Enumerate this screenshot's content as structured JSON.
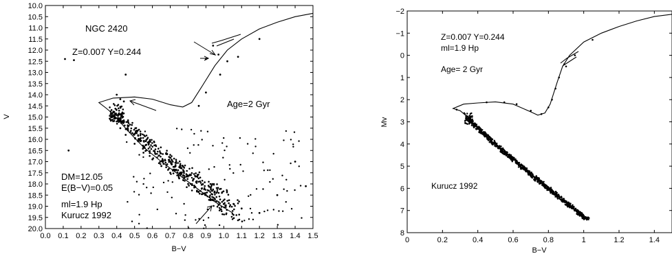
{
  "chart_data": [
    {
      "type": "scatter",
      "xlabel": "B−V",
      "ylabel": "V",
      "xlim": [
        0.0,
        1.5
      ],
      "ylim": [
        20.0,
        10.0
      ],
      "y_inverted": true,
      "xticks": [
        "0.0",
        "0.1",
        "0.2",
        "0.3",
        "0.4",
        "0.5",
        "0.6",
        "0.7",
        "0.8",
        "0.9",
        "1.0",
        "1.1",
        "1.2",
        "1.3",
        "1.4",
        "1.5"
      ],
      "yticks": [
        "10.0",
        "10.5",
        "11.0",
        "11.5",
        "12.0",
        "12.5",
        "13.0",
        "13.5",
        "14.0",
        "14.5",
        "15.0",
        "15.5",
        "16.0",
        "16.5",
        "17.0",
        "17.5",
        "18.0",
        "18.5",
        "19.0",
        "19.5",
        "20.0"
      ],
      "annotations": [
        "NGC 2420",
        "Z=0.007  Y=0.244",
        "Age=2 Gyr",
        "DM=12.05",
        "E(B−V)=0.05",
        "ml=1.9 Hp",
        "Kurucz 1992"
      ],
      "isochrone_points": [
        [
          1.05,
          19.3
        ],
        [
          0.95,
          18.8
        ],
        [
          0.85,
          18.2
        ],
        [
          0.75,
          17.6
        ],
        [
          0.65,
          17.0
        ],
        [
          0.55,
          16.35
        ],
        [
          0.46,
          15.6
        ],
        [
          0.4,
          15.05
        ],
        [
          0.37,
          14.8
        ],
        [
          0.34,
          14.6
        ],
        [
          0.3,
          14.35
        ],
        [
          0.38,
          14.15
        ],
        [
          0.5,
          14.1
        ],
        [
          0.6,
          14.2
        ],
        [
          0.7,
          14.45
        ],
        [
          0.77,
          14.55
        ],
        [
          0.82,
          14.35
        ],
        [
          0.88,
          13.6
        ],
        [
          0.95,
          12.7
        ],
        [
          1.02,
          12.0
        ],
        [
          1.1,
          11.5
        ],
        [
          1.2,
          11.05
        ],
        [
          1.3,
          10.75
        ],
        [
          1.4,
          10.5
        ],
        [
          1.5,
          10.35
        ]
      ],
      "turnoff_points": [
        [
          0.38,
          14.8
        ],
        [
          0.4,
          15.2
        ],
        [
          0.42,
          15.5
        ],
        [
          0.45,
          15.8
        ],
        [
          0.5,
          16.2
        ],
        [
          0.55,
          16.6
        ],
        [
          0.6,
          16.9
        ],
        [
          0.65,
          17.2
        ],
        [
          0.7,
          17.5
        ],
        [
          0.75,
          17.75
        ],
        [
          0.8,
          18.0
        ],
        [
          0.85,
          18.3
        ],
        [
          0.9,
          18.5
        ],
        [
          1.0,
          18.9
        ],
        [
          1.1,
          19.1
        ],
        [
          1.2,
          19.3
        ],
        [
          0.42,
          14.2
        ],
        [
          0.4,
          14.0
        ],
        [
          0.44,
          14.3
        ],
        [
          0.9,
          12.4
        ],
        [
          0.97,
          12.2
        ],
        [
          1.02,
          12.5
        ],
        [
          1.08,
          12.3
        ],
        [
          0.86,
          14.5
        ],
        [
          0.9,
          13.9
        ],
        [
          0.16,
          12.45
        ],
        [
          0.11,
          12.4
        ],
        [
          0.13,
          16.5
        ],
        [
          0.45,
          13.1
        ],
        [
          1.2,
          11.5
        ],
        [
          0.94,
          11.8
        ],
        [
          0.98,
          13.1
        ],
        [
          1.4,
          17.0
        ],
        [
          1.46,
          18.1
        ],
        [
          1.3,
          18.5
        ]
      ],
      "scatter_seed": "NGC2420"
    },
    {
      "type": "scatter",
      "xlabel": "B−V",
      "ylabel": "Mv",
      "xlim": [
        0.0,
        1.5
      ],
      "ylim": [
        8,
        -2
      ],
      "y_inverted": true,
      "xticks": [
        "0",
        "0.2",
        "0.4",
        "0.6",
        "0.8",
        "1",
        "1.2",
        "1.4"
      ],
      "yticks": [
        "−2",
        "−1",
        "0",
        "1",
        "2",
        "3",
        "4",
        "5",
        "6",
        "7",
        "8"
      ],
      "annotations": [
        "Z=0.007  Y=0.244",
        "ml=1.9 Hp",
        "Age= 2 Gyr",
        "Kurucz 1992"
      ],
      "isochrone_points": [
        [
          0.34,
          2.9
        ],
        [
          0.33,
          2.7
        ],
        [
          0.3,
          2.5
        ],
        [
          0.26,
          2.4
        ],
        [
          0.32,
          2.2
        ],
        [
          0.4,
          2.15
        ],
        [
          0.5,
          2.1
        ],
        [
          0.6,
          2.2
        ],
        [
          0.7,
          2.55
        ],
        [
          0.74,
          2.7
        ],
        [
          0.78,
          2.6
        ],
        [
          0.81,
          2.2
        ],
        [
          0.85,
          1.2
        ],
        [
          0.88,
          0.5
        ],
        [
          0.92,
          0.0
        ],
        [
          1.0,
          -0.6
        ],
        [
          1.1,
          -1.0
        ],
        [
          1.2,
          -1.3
        ],
        [
          1.3,
          -1.55
        ],
        [
          1.4,
          -1.75
        ],
        [
          1.5,
          -1.85
        ]
      ],
      "sequence_range": [
        [
          0.34,
          2.8
        ],
        [
          1.02,
          7.4
        ]
      ],
      "scatter_seed": "synthetic"
    }
  ]
}
